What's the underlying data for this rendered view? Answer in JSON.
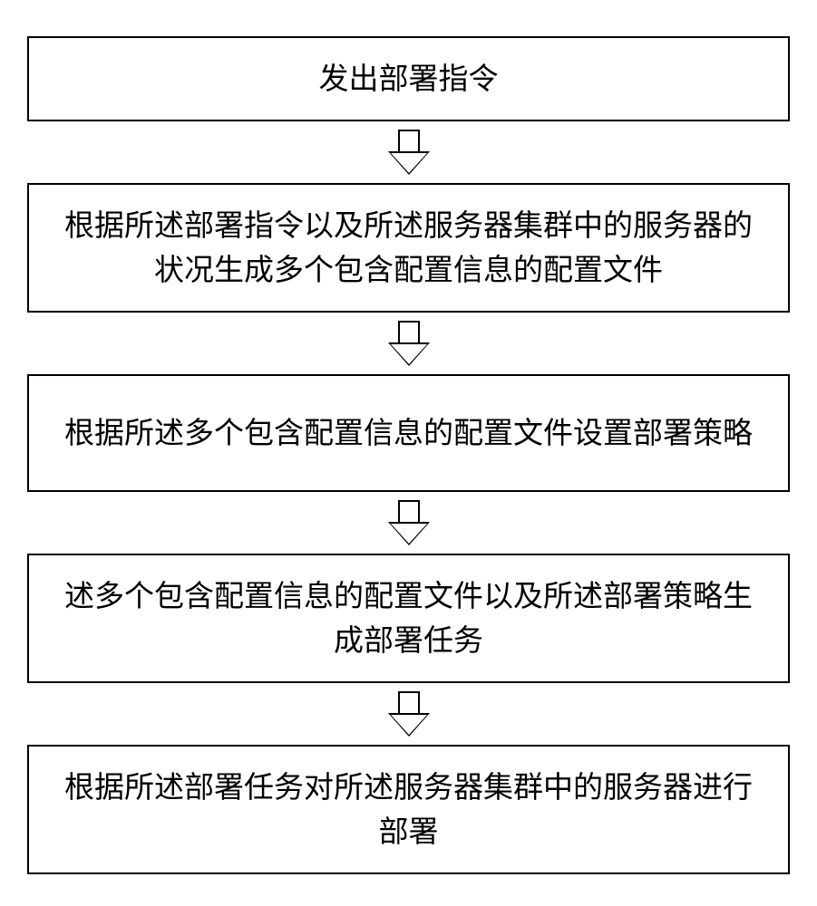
{
  "flowchart": {
    "type": "flowchart",
    "direction": "vertical",
    "background_color": "#ffffff",
    "border_color": "#000000",
    "border_width": 2,
    "text_color": "#000000",
    "font_size": 33,
    "arrow_color": "#000000",
    "arrow_fill": "#ffffff",
    "steps": [
      {
        "id": "step1",
        "text": "发出部署指令",
        "size": "small"
      },
      {
        "id": "step2",
        "text": "根据所述部署指令以及所述服务器集群中的服务器的状况生成多个包含配置信息的配置文件",
        "size": "large"
      },
      {
        "id": "step3",
        "text": "根据所述多个包含配置信息的配置文件设置部署策略",
        "size": "large"
      },
      {
        "id": "step4",
        "text": "述多个包含配置信息的配置文件以及所述部署策略生成部署任务",
        "size": "large"
      },
      {
        "id": "step5",
        "text": "根据所述部署任务对所述服务器集群中的服务器进行部署",
        "size": "large"
      }
    ]
  }
}
